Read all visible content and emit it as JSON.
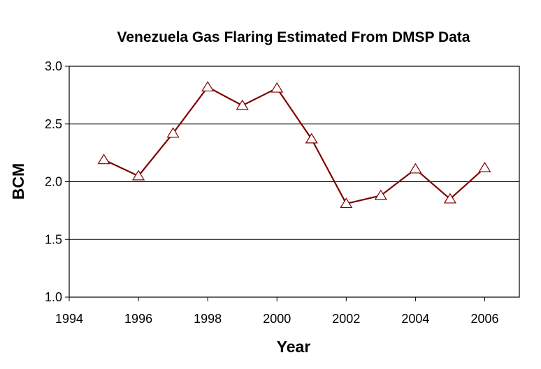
{
  "chart_data": {
    "type": "line",
    "title": "Venezuela Gas Flaring Estimated From DMSP Data",
    "xlabel": "Year",
    "ylabel": "BCM",
    "xlim": [
      1994,
      2007
    ],
    "ylim": [
      1.0,
      3.0
    ],
    "xticks": [
      1994,
      1996,
      1998,
      2000,
      2002,
      2004,
      2006
    ],
    "yticks": [
      1.0,
      1.5,
      2.0,
      2.5,
      3.0
    ],
    "ytick_labels": [
      "1.0",
      "1.5",
      "2.0",
      "2.5",
      "3.0"
    ],
    "grid": "horizontal",
    "series": [
      {
        "color": "#800000",
        "marker": "triangle",
        "x": [
          1995,
          1996,
          1997,
          1998,
          1999,
          2000,
          2001,
          2002,
          2003,
          2004,
          2005,
          2006
        ],
        "y": [
          2.19,
          2.05,
          2.42,
          2.82,
          2.66,
          2.81,
          2.37,
          1.81,
          1.88,
          2.11,
          1.85,
          2.12
        ]
      }
    ]
  }
}
